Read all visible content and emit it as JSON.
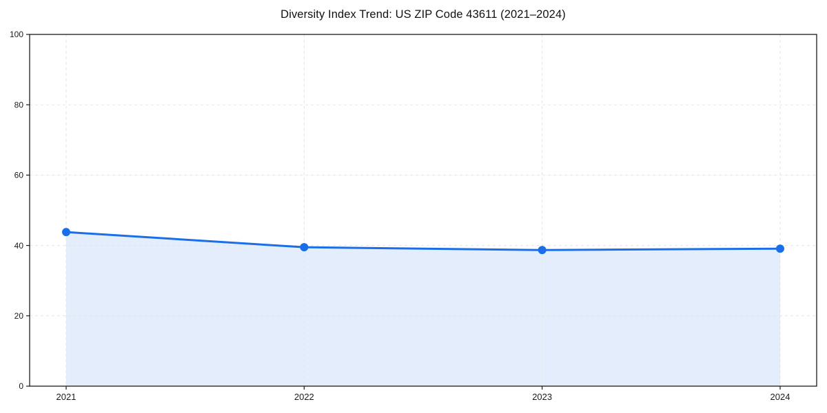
{
  "chart_data": {
    "type": "area",
    "title": "Diversity Index Trend: US ZIP Code 43611 (2021–2024)",
    "x": [
      "2021",
      "2022",
      "2023",
      "2024"
    ],
    "values": [
      43.8,
      39.5,
      38.7,
      39.1
    ],
    "xlabel": "",
    "ylabel": "",
    "ylim": [
      0,
      100
    ],
    "yticks": [
      0,
      20,
      40,
      60,
      80,
      100
    ],
    "xticks": [
      "2021",
      "2022",
      "2023",
      "2024"
    ],
    "grid": true,
    "grid_style": "dashed",
    "legend_position": "none",
    "colors": {
      "line": "#1a6fe8",
      "marker": "#1a6fe8",
      "fill": "rgba(26,111,232,0.12)",
      "grid": "#e4e4e4",
      "spine": "#1a1a1a",
      "tick_label": "#1a1a1a",
      "background": "#ffffff"
    }
  }
}
